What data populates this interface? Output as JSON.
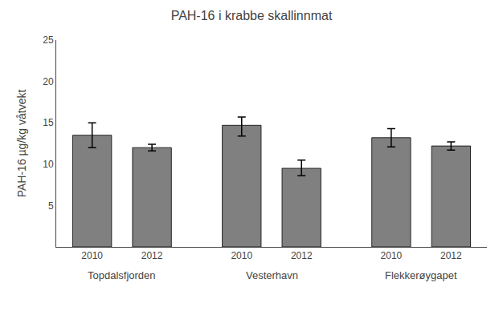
{
  "chart_data": {
    "type": "bar",
    "title": "PAH-16 i krabbe skallinnmat",
    "ylabel": "PAH-16 µg/kg våtvekt",
    "categories": [
      "2010",
      "2012",
      "2010",
      "2012",
      "2010",
      "2012"
    ],
    "groups": [
      "Topdalsfjorden",
      "Vesterhavn",
      "Flekkerøygapet"
    ],
    "values": [
      13.5,
      12.0,
      14.7,
      9.5,
      13.2,
      12.2
    ],
    "errors_upper": [
      1.5,
      0.4,
      1.0,
      1.0,
      1.1,
      0.5
    ],
    "errors_lower": [
      1.5,
      0.4,
      1.3,
      0.9,
      1.1,
      0.5
    ],
    "color": "#808080",
    "ylim": [
      0,
      25
    ],
    "yticks": [
      5,
      10,
      15,
      20,
      25
    ],
    "grid": false
  }
}
